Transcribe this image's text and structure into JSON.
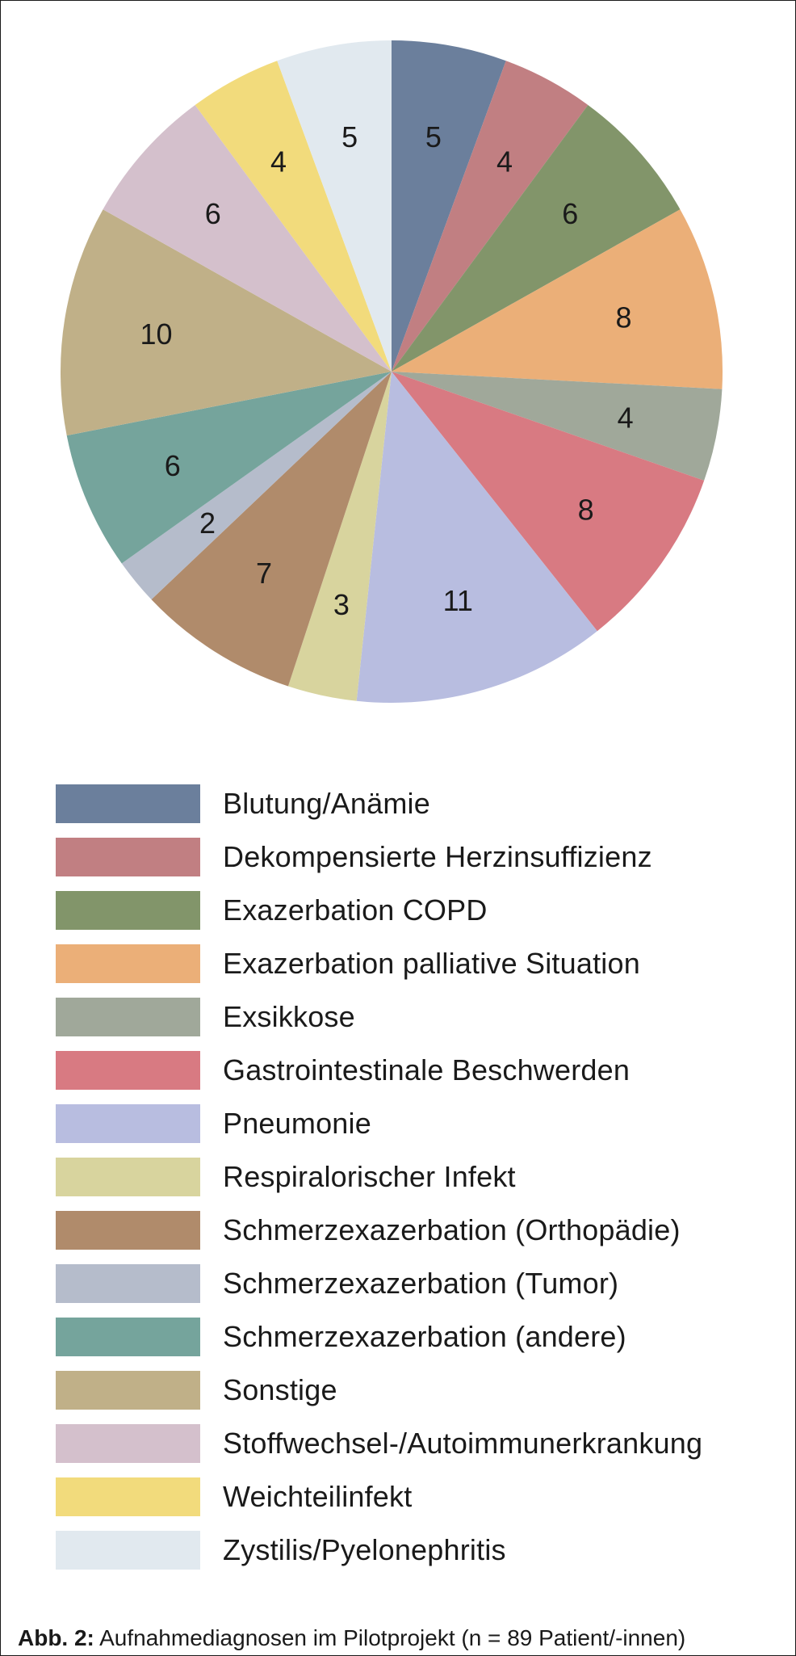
{
  "chart_data": {
    "type": "pie",
    "title": "",
    "categories": [
      "Blutung/Anämie",
      "Dekompensierte Herzinsuffizienz",
      "Exazerbation COPD",
      "Exazerbation palliative Situation",
      "Exsikkose",
      "Gastrointestinale Beschwerden",
      "Pneumonie",
      "Respiralorischer Infekt",
      "Schmerzexazerbation (Orthopädie)",
      "Schmerzexazerbation (Tumor)",
      "Schmerzexazerbation (andere)",
      "Sonstige",
      "Stoffwechsel-/Autoimmunerkrankung",
      "Weichteilinfekt",
      "Zystilis/Pyelonephritis"
    ],
    "values": [
      5,
      4,
      6,
      8,
      4,
      8,
      11,
      3,
      7,
      2,
      6,
      10,
      6,
      4,
      5
    ],
    "colors": [
      "#6b7f9c",
      "#c17f82",
      "#82956a",
      "#ebaf78",
      "#a0a89a",
      "#d87a82",
      "#b8bde0",
      "#d8d49e",
      "#b08b6b",
      "#b5bccb",
      "#75a49c",
      "#c0b088",
      "#d4c0cc",
      "#f2db7c",
      "#e1e9ef"
    ],
    "data_labels": [
      "5",
      "4",
      "6",
      "8",
      "4",
      "8",
      "11",
      "3",
      "7",
      "2",
      "6",
      "10",
      "6",
      "4",
      "5"
    ],
    "legend_position": "bottom",
    "start": "top, clockwise"
  },
  "caption": {
    "prefix": "Abb. 2:",
    "text": " Aufnahmediagnosen im Pilotprojekt (n = 89 Patient/-innen)"
  }
}
